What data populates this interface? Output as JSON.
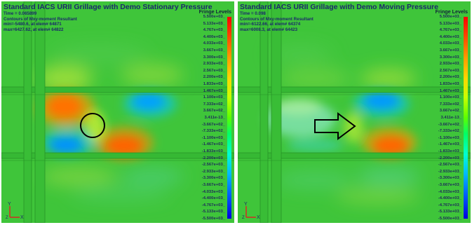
{
  "panels": {
    "left": {
      "title": "Standard IACS URII Grillage with Demo Stationary Pressure",
      "time_line": "Time =   0.065899",
      "contours_line": "Contours of Mxy-moment Resultant",
      "min_line": "min=-5480.6, at elem# 64871",
      "max_line": "max=6427.62, at elem# 64822",
      "overlay_icon": "circle-marker"
    },
    "right": {
      "title": "Standard IACS URII Grillage with Demo Moving Pressure",
      "time_line": "Time =   0.098",
      "contours_line": "Contours of Mxy-moment Resultant",
      "min_line": "min=-6122.66, at elem# 64374",
      "max_line": "max=6008.3, at elem# 64423",
      "overlay_icon": "right-arrow-outline"
    }
  },
  "legend": {
    "title": "Fringe Levels",
    "levels": [
      "5.500e+03_",
      "5.133e+03_",
      "4.767e+03_",
      "4.400e+03_",
      "4.033e+03_",
      "3.667e+03_",
      "3.300e+03_",
      "2.933e+03_",
      "2.567e+03_",
      "2.200e+03_",
      "1.833e+03_",
      "1.467e+03_",
      "1.100e+03_",
      "7.333e+02_",
      "3.667e+02_",
      "3.411e-13_",
      "-3.667e+02_",
      "-7.333e+02_",
      "-1.100e+03_",
      "-1.467e+03_",
      "-1.833e+03_",
      "-2.200e+03_",
      "-2.567e+03_",
      "-2.933e+03_",
      "-3.300e+03_",
      "-3.667e+03_",
      "-4.033e+03_",
      "-4.400e+03_",
      "-4.767e+03_",
      "-5.133e+03_",
      "-5.500e+03_"
    ]
  },
  "axes": {
    "y_label": "Y",
    "z_label": "Z",
    "x_label": "X"
  },
  "colors": {
    "background_green": "#3fc53a",
    "beam_green": "#36b834",
    "text_blue": "#1a2a6a"
  }
}
